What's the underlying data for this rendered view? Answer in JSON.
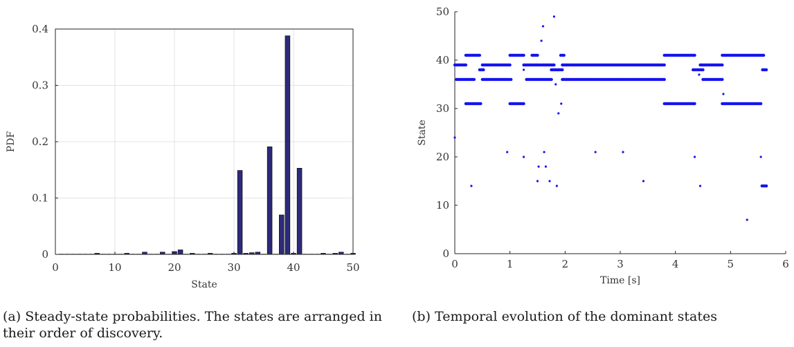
{
  "chart_data": [
    {
      "type": "bar",
      "xlabel": "State",
      "ylabel": "PDF",
      "xlim": [
        0,
        50
      ],
      "ylim": [
        0,
        0.4
      ],
      "xticks": [
        0,
        10,
        20,
        30,
        40,
        50
      ],
      "yticks": [
        0,
        0.1,
        0.2,
        0.3,
        0.4
      ],
      "grid": true,
      "bar_color": "#2e2a7a",
      "x": [
        1,
        2,
        3,
        4,
        5,
        6,
        7,
        8,
        9,
        10,
        11,
        12,
        13,
        14,
        15,
        16,
        17,
        18,
        19,
        20,
        21,
        22,
        23,
        24,
        25,
        26,
        27,
        28,
        29,
        30,
        31,
        32,
        33,
        34,
        35,
        36,
        37,
        38,
        39,
        40,
        41,
        42,
        43,
        44,
        45,
        46,
        47,
        48,
        49,
        50
      ],
      "values": [
        0.0005,
        0.0005,
        0.0005,
        0.0005,
        0.0005,
        0.0005,
        0.002,
        0.0005,
        0.0005,
        0.0005,
        0.0005,
        0.002,
        0.0005,
        0.0005,
        0.004,
        0.0005,
        0.0005,
        0.004,
        0.0005,
        0.005,
        0.008,
        0.0005,
        0.002,
        0.0005,
        0.0005,
        0.002,
        0.0005,
        0.0005,
        0.0005,
        0.002,
        0.149,
        0.002,
        0.003,
        0.004,
        0.0005,
        0.191,
        0.0005,
        0.07,
        0.388,
        0.002,
        0.153,
        0.0005,
        0.0005,
        0.0005,
        0.002,
        0.0005,
        0.002,
        0.004,
        0.0005,
        0.002
      ]
    },
    {
      "type": "scatter",
      "xlabel": "Time [s]",
      "ylabel": "State",
      "xlim": [
        0,
        6
      ],
      "ylim": [
        0,
        50
      ],
      "xticks": [
        0,
        1,
        2,
        3,
        4,
        5,
        6
      ],
      "yticks": [
        0,
        10,
        20,
        30,
        40,
        50
      ],
      "grid": false,
      "marker_color": "#1515ee",
      "segments": [
        {
          "y": 39,
          "x_start": 0.0,
          "x_end": 0.2
        },
        {
          "y": 41,
          "x_start": 0.2,
          "x_end": 0.45
        },
        {
          "y": 36,
          "x_start": 0.03,
          "x_end": 0.35
        },
        {
          "y": 31,
          "x_start": 0.2,
          "x_end": 0.47
        },
        {
          "y": 38,
          "x_start": 0.45,
          "x_end": 0.52
        },
        {
          "y": 39,
          "x_start": 0.5,
          "x_end": 1.0
        },
        {
          "y": 36,
          "x_start": 0.5,
          "x_end": 1.02
        },
        {
          "y": 41,
          "x_start": 1.0,
          "x_end": 1.25
        },
        {
          "y": 31,
          "x_start": 1.0,
          "x_end": 1.25
        },
        {
          "y": 39,
          "x_start": 1.25,
          "x_end": 1.8
        },
        {
          "y": 36,
          "x_start": 1.3,
          "x_end": 1.75
        },
        {
          "y": 41,
          "x_start": 1.4,
          "x_end": 1.5
        },
        {
          "y": 38,
          "x_start": 1.75,
          "x_end": 1.95
        },
        {
          "y": 41,
          "x_start": 1.92,
          "x_end": 1.98
        },
        {
          "y": 39,
          "x_start": 1.95,
          "x_end": 3.8
        },
        {
          "y": 36,
          "x_start": 1.95,
          "x_end": 3.8
        },
        {
          "y": 41,
          "x_start": 3.8,
          "x_end": 4.35
        },
        {
          "y": 31,
          "x_start": 3.8,
          "x_end": 4.35
        },
        {
          "y": 38,
          "x_start": 4.32,
          "x_end": 4.5
        },
        {
          "y": 39,
          "x_start": 4.45,
          "x_end": 4.85
        },
        {
          "y": 36,
          "x_start": 4.5,
          "x_end": 4.85
        },
        {
          "y": 41,
          "x_start": 4.85,
          "x_end": 5.6
        },
        {
          "y": 31,
          "x_start": 4.85,
          "x_end": 5.55
        },
        {
          "y": 38,
          "x_start": 5.58,
          "x_end": 5.65
        },
        {
          "y": 14,
          "x_start": 5.57,
          "x_end": 5.65
        }
      ],
      "points": [
        [
          0.0,
          24
        ],
        [
          0.3,
          14
        ],
        [
          0.95,
          21
        ],
        [
          1.25,
          20
        ],
        [
          1.25,
          38
        ],
        [
          1.5,
          15
        ],
        [
          1.52,
          18
        ],
        [
          1.57,
          44
        ],
        [
          1.6,
          47
        ],
        [
          1.62,
          21
        ],
        [
          1.65,
          18
        ],
        [
          1.72,
          15
        ],
        [
          1.76,
          36
        ],
        [
          1.8,
          49
        ],
        [
          1.83,
          35
        ],
        [
          1.85,
          14
        ],
        [
          1.88,
          29
        ],
        [
          1.93,
          31
        ],
        [
          2.55,
          21
        ],
        [
          3.05,
          21
        ],
        [
          3.42,
          15
        ],
        [
          4.35,
          20
        ],
        [
          4.43,
          37
        ],
        [
          4.45,
          14
        ],
        [
          4.87,
          33
        ],
        [
          5.3,
          7
        ],
        [
          5.55,
          20
        ]
      ]
    }
  ],
  "captions": {
    "a": "(a) Steady-state probabilities. The states are arranged in their order of discovery.",
    "b": "(b) Temporal evolution of the dominant states"
  }
}
